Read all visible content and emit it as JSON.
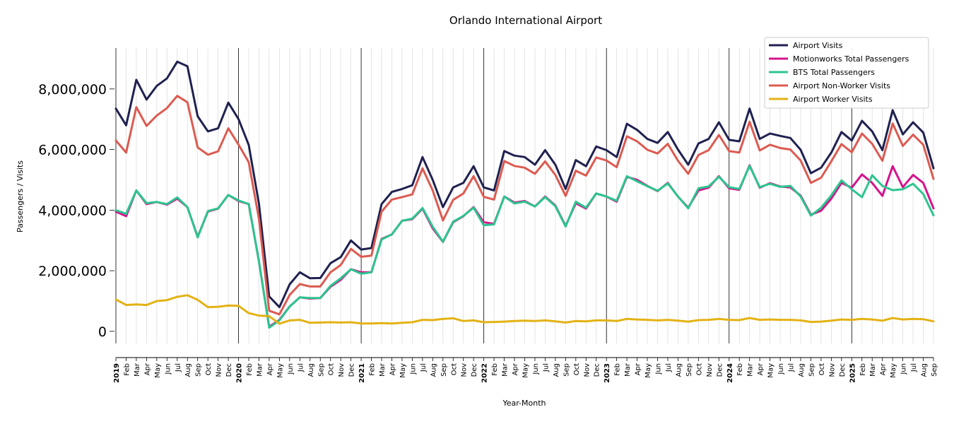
{
  "chart_data": {
    "type": "line",
    "title": "Orlando International Airport",
    "xlabel": "Year-Month",
    "ylabel": "Passengers / Visits",
    "ylim": [
      -400000,
      9350000
    ],
    "yticks": [
      0,
      2000000,
      4000000,
      6000000,
      8000000
    ],
    "ytick_labels": [
      "0",
      "2,000,000",
      "4,000,000",
      "6,000,000",
      "8,000,000"
    ],
    "grid": "vertical monthly gridlines, year separators",
    "legend_position": "top-right",
    "x": [
      "2019",
      "Feb",
      "Mar",
      "Apr",
      "May",
      "Jun",
      "Jul",
      "Aug",
      "Sep",
      "Oct",
      "Nov",
      "Dec",
      "2020",
      "Feb",
      "Mar",
      "Apr",
      "May",
      "Jun",
      "Jul",
      "Aug",
      "Sep",
      "Oct",
      "Nov",
      "Dec",
      "2021",
      "Feb",
      "Mar",
      "Apr",
      "May",
      "Jun",
      "Jul",
      "Aug",
      "Sep",
      "Oct",
      "Nov",
      "Dec",
      "2022",
      "Feb",
      "Mar",
      "Apr",
      "May",
      "Jun",
      "Jul",
      "Aug",
      "Sep",
      "Oct",
      "Nov",
      "Dec",
      "2023",
      "Feb",
      "Mar",
      "Apr",
      "May",
      "Jun",
      "Jul",
      "Aug",
      "Sep",
      "Oct",
      "Nov",
      "Dec",
      "2024",
      "Feb",
      "Mar",
      "Apr",
      "May",
      "Jun",
      "Jul",
      "Aug",
      "Sep",
      "Oct",
      "Nov",
      "Dec",
      "2025",
      "Feb",
      "Mar",
      "Apr",
      "May",
      "Jun",
      "Jul",
      "Aug",
      "Sep"
    ],
    "year_labels": [
      "2019",
      "2020",
      "2021",
      "2022",
      "2023",
      "2024",
      "2025"
    ],
    "series": [
      {
        "name": "Airport Visits",
        "color": "#1f2150",
        "values": [
          7350000,
          6800000,
          8300000,
          7650000,
          8100000,
          8350000,
          8900000,
          8750000,
          7100000,
          6600000,
          6700000,
          7550000,
          7000000,
          6150000,
          4200000,
          1150000,
          800000,
          1550000,
          1950000,
          1750000,
          1760000,
          2250000,
          2450000,
          3000000,
          2700000,
          2750000,
          4200000,
          4600000,
          4700000,
          4820000,
          5750000,
          5000000,
          4100000,
          4750000,
          4900000,
          5450000,
          4750000,
          4650000,
          5950000,
          5800000,
          5750000,
          5500000,
          5980000,
          5500000,
          4700000,
          5650000,
          5450000,
          6100000,
          5980000,
          5750000,
          6850000,
          6650000,
          6350000,
          6220000,
          6580000,
          6000000,
          5500000,
          6200000,
          6350000,
          6900000,
          6320000,
          6270000,
          7350000,
          6350000,
          6530000,
          6450000,
          6380000,
          5990000,
          5220000,
          5400000,
          5900000,
          6580000,
          6300000,
          6950000,
          6600000,
          5980000,
          7300000,
          6500000,
          6900000,
          6560000,
          5380000
        ]
      },
      {
        "name": "Motionworks Total Passengers",
        "color": "#d4148c",
        "values": [
          3950000,
          3800000,
          4650000,
          4200000,
          4270000,
          4180000,
          4380000,
          4100000,
          3120000,
          3950000,
          4050000,
          4500000,
          4300000,
          4200000,
          2300000,
          150000,
          380000,
          820000,
          1120000,
          1080000,
          1100000,
          1470000,
          1700000,
          2050000,
          1950000,
          1950000,
          3050000,
          3200000,
          3650000,
          3700000,
          4050000,
          3400000,
          2950000,
          3600000,
          3800000,
          4100000,
          3600000,
          3550000,
          4450000,
          4250000,
          4300000,
          4120000,
          4450000,
          4150000,
          3480000,
          4230000,
          4050000,
          4550000,
          4450000,
          4280000,
          5100000,
          5000000,
          4800000,
          4630000,
          4900000,
          4450000,
          4080000,
          4650000,
          4740000,
          5120000,
          4720000,
          4670000,
          5480000,
          4740000,
          4890000,
          4780000,
          4750000,
          4480000,
          3850000,
          3980000,
          4380000,
          4900000,
          4740000,
          5180000,
          4900000,
          4470000,
          5450000,
          4760000,
          5160000,
          4900000,
          4060000
        ]
      },
      {
        "name": "BTS Total Passengers",
        "color": "#2cc58f",
        "values": [
          4000000,
          3880000,
          4650000,
          4230000,
          4270000,
          4200000,
          4420000,
          4100000,
          3100000,
          3970000,
          4060000,
          4500000,
          4320000,
          4200000,
          2300000,
          120000,
          360000,
          820000,
          1120000,
          1100000,
          1100000,
          1500000,
          1750000,
          2050000,
          1900000,
          1950000,
          3030000,
          3200000,
          3650000,
          3720000,
          4070000,
          3450000,
          2960000,
          3620000,
          3810000,
          4080000,
          3500000,
          3530000,
          4450000,
          4220000,
          4280000,
          4120000,
          4430000,
          4130000,
          3460000,
          4280000,
          4080000,
          4550000,
          4450000,
          4310000,
          5120000,
          4950000,
          4790000,
          4640000,
          4880000,
          4450000,
          4060000,
          4720000,
          4780000,
          5100000,
          4760000,
          4700000,
          5460000,
          4760000,
          4870000,
          4770000,
          4800000,
          4450000,
          3820000,
          4080000,
          4490000,
          4980000,
          4690000,
          4430000,
          5150000,
          4800000,
          4660000,
          4690000,
          4870000,
          4530000,
          3830000
        ]
      },
      {
        "name": "Airport Non-Worker Visits",
        "color": "#dc5a50",
        "values": [
          6300000,
          5900000,
          7400000,
          6780000,
          7120000,
          7370000,
          7770000,
          7560000,
          6070000,
          5830000,
          5940000,
          6700000,
          6160000,
          5580000,
          3700000,
          680000,
          560000,
          1200000,
          1560000,
          1480000,
          1480000,
          1950000,
          2190000,
          2720000,
          2460000,
          2500000,
          3950000,
          4350000,
          4430000,
          4520000,
          5380000,
          4650000,
          3660000,
          4340000,
          4550000,
          5120000,
          4440000,
          4350000,
          5620000,
          5460000,
          5400000,
          5200000,
          5610000,
          5160000,
          4470000,
          5300000,
          5140000,
          5740000,
          5640000,
          5420000,
          6440000,
          6270000,
          5990000,
          5870000,
          6190000,
          5630000,
          5200000,
          5820000,
          5980000,
          6480000,
          5950000,
          5900000,
          6920000,
          5970000,
          6160000,
          6050000,
          6000000,
          5640000,
          4900000,
          5070000,
          5610000,
          6180000,
          5910000,
          6530000,
          6190000,
          5630000,
          6860000,
          6120000,
          6490000,
          6160000,
          5030000
        ]
      },
      {
        "name": "Airport Worker Visits",
        "color": "#e3b214",
        "values": [
          1050000,
          870000,
          890000,
          870000,
          1000000,
          1030000,
          1140000,
          1190000,
          1040000,
          800000,
          810000,
          850000,
          840000,
          600000,
          520000,
          500000,
          250000,
          360000,
          380000,
          280000,
          290000,
          300000,
          290000,
          300000,
          260000,
          260000,
          270000,
          260000,
          280000,
          300000,
          380000,
          370000,
          410000,
          430000,
          340000,
          360000,
          300000,
          310000,
          320000,
          340000,
          350000,
          340000,
          360000,
          330000,
          290000,
          340000,
          330000,
          360000,
          360000,
          340000,
          410000,
          390000,
          380000,
          360000,
          380000,
          350000,
          320000,
          370000,
          380000,
          410000,
          380000,
          370000,
          440000,
          380000,
          390000,
          380000,
          380000,
          360000,
          310000,
          320000,
          350000,
          390000,
          380000,
          410000,
          390000,
          350000,
          440000,
          390000,
          410000,
          400000,
          330000
        ]
      }
    ]
  }
}
